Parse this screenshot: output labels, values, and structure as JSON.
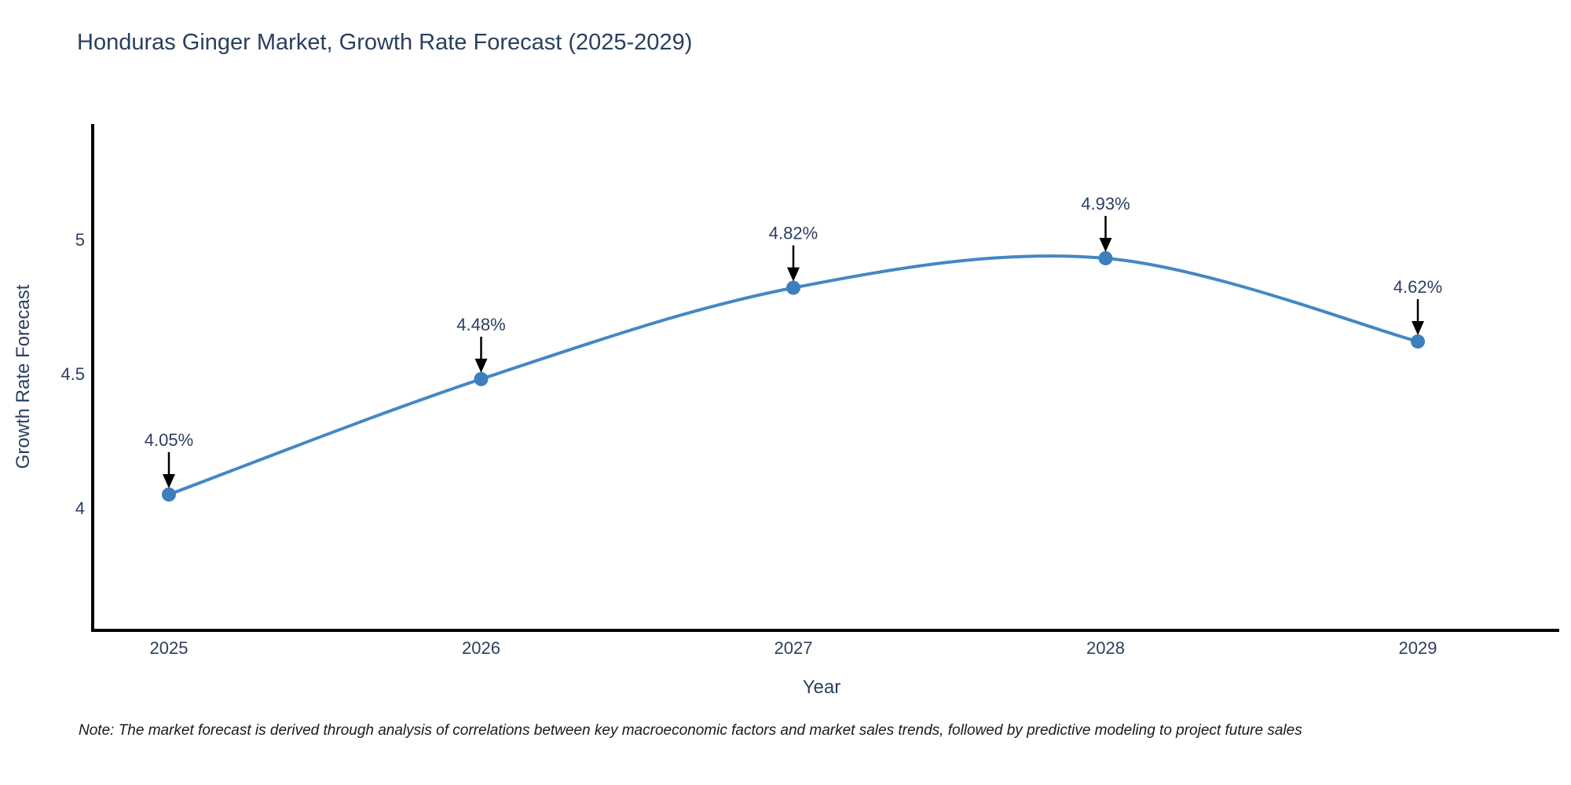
{
  "note": "Note: The market forecast is derived through analysis of correlations between key macroeconomic factors and market sales trends, followed by predictive modeling to project future sales",
  "style": {
    "line_color": "#4487c4",
    "marker_color": "#3d7ebf",
    "text_color": "#2a3f5f",
    "axis_color": "#000000",
    "arrow_color": "#000000",
    "background": "#ffffff"
  },
  "chart_data": {
    "type": "line",
    "title": "Honduras Ginger Market, Growth Rate Forecast (2025-2029)",
    "xlabel": "Year",
    "ylabel": "Growth Rate Forecast",
    "x": [
      2025,
      2026,
      2027,
      2028,
      2029
    ],
    "values": [
      4.05,
      4.48,
      4.82,
      4.93,
      4.62
    ],
    "point_labels": [
      "4.05%",
      "4.48%",
      "4.82%",
      "4.93%",
      "4.62%"
    ],
    "yticks": [
      4,
      4.5,
      5
    ],
    "ytick_labels": [
      "4",
      "4.5",
      "5"
    ],
    "ylim": [
      3.544,
      5.43
    ],
    "line_shape": "spline",
    "grid": false,
    "legend_position": "none",
    "annotations": "black arrows pointing down to each data point with percentage labels above"
  }
}
